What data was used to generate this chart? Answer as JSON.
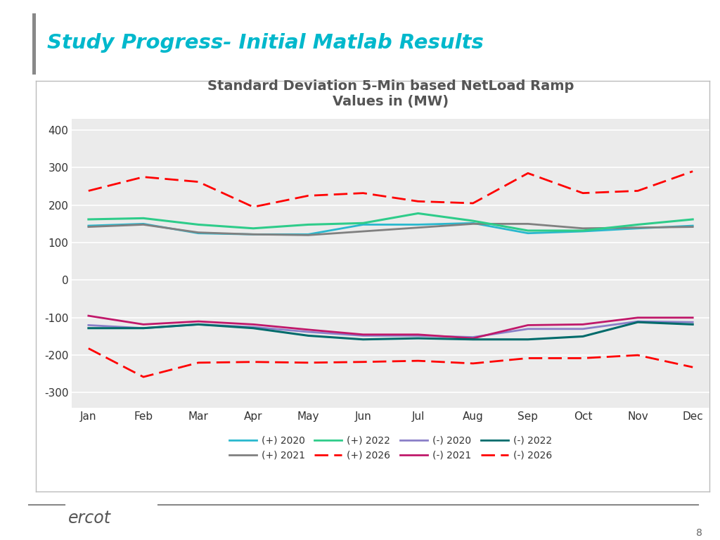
{
  "title": "Standard Deviation 5-Min based NetLoad Ramp\nValues in (MW)",
  "slide_title": "Study Progress- Initial Matlab Results",
  "months": [
    "Jan",
    "Feb",
    "Mar",
    "Apr",
    "May",
    "Jun",
    "Jul",
    "Aug",
    "Sep",
    "Oct",
    "Nov",
    "Dec"
  ],
  "series": {
    "pos_2020": [
      145,
      150,
      125,
      122,
      122,
      148,
      148,
      152,
      125,
      130,
      138,
      145
    ],
    "pos_2021": [
      142,
      148,
      127,
      122,
      120,
      130,
      140,
      150,
      150,
      138,
      140,
      142
    ],
    "pos_2022": [
      162,
      165,
      148,
      138,
      148,
      152,
      178,
      158,
      132,
      132,
      148,
      162
    ],
    "pos_2026": [
      238,
      275,
      262,
      195,
      225,
      232,
      210,
      205,
      285,
      232,
      238,
      290
    ],
    "neg_2020": [
      -120,
      -128,
      -118,
      -125,
      -138,
      -148,
      -148,
      -152,
      -130,
      -130,
      -110,
      -112
    ],
    "neg_2021": [
      -95,
      -118,
      -110,
      -118,
      -132,
      -145,
      -145,
      -155,
      -120,
      -118,
      -100,
      -100
    ],
    "neg_2022": [
      -128,
      -128,
      -118,
      -128,
      -148,
      -158,
      -155,
      -158,
      -158,
      -150,
      -112,
      -118
    ],
    "neg_2026": [
      -182,
      -258,
      -220,
      -218,
      -220,
      -218,
      -215,
      -222,
      -208,
      -208,
      -200,
      -232
    ]
  },
  "colors": {
    "pos_2020": "#29B8CE",
    "pos_2021": "#808080",
    "pos_2022": "#2ECC8A",
    "pos_2026": "#FF0000",
    "neg_2020": "#8A7FC8",
    "neg_2021": "#C0186A",
    "neg_2022": "#006B6B",
    "neg_2026": "#FF0000"
  },
  "ylim": [
    -340,
    430
  ],
  "yticks": [
    -300,
    -200,
    -100,
    0,
    100,
    200,
    300,
    400
  ],
  "slide_title_color": "#00B8CC",
  "accent_bar_color": "#888888",
  "title_color": "#555555",
  "chart_bg": "#EBEBEB"
}
